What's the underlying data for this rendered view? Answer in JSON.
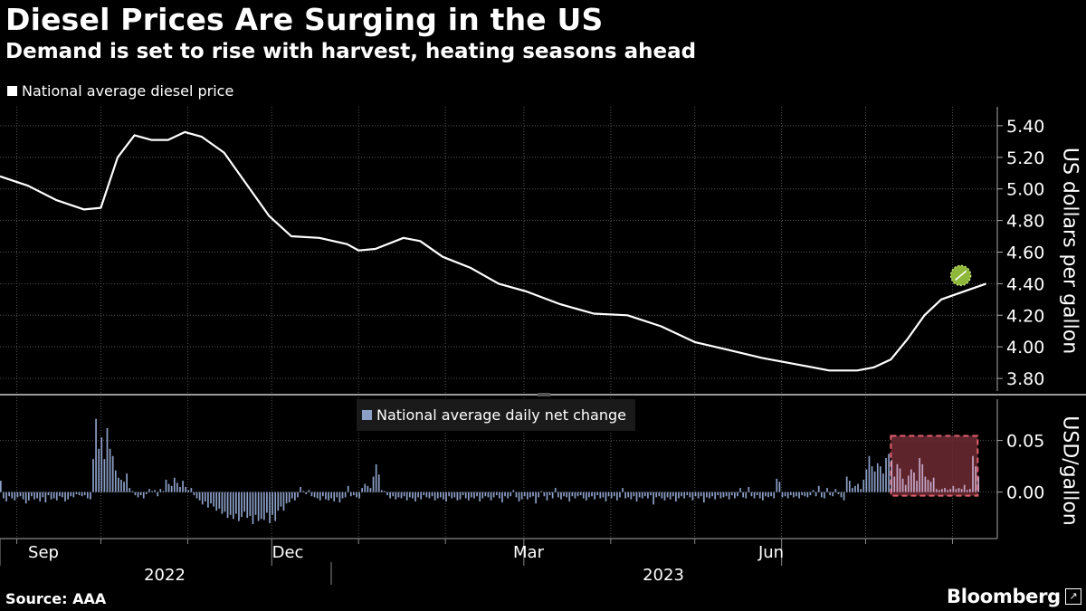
{
  "header": {
    "title": "Diesel Prices Are Surging in the US",
    "subtitle": "Demand is set to rise with harvest, heating seasons ahead"
  },
  "footer": {
    "source": "Source: AAA",
    "brand": "Bloomberg"
  },
  "colors": {
    "background": "#000000",
    "price_line": "#ffffff",
    "bar_fill": "#8c9fc6",
    "marker_fill": "#8fb83a",
    "highlight_fill": "#6e2a33",
    "highlight_border": "#e0606e",
    "grid": "#555555"
  },
  "chart_data": [
    {
      "type": "line",
      "title": "Diesel Prices Are Surging in the US",
      "legend": "National average diesel price",
      "ylabel": "US dollars per gallon",
      "ylim": [
        3.72,
        5.52
      ],
      "yticks": [
        3.8,
        4.0,
        4.2,
        4.4,
        4.6,
        4.8,
        5.0,
        5.2,
        5.4
      ],
      "ytick_labels": [
        "3.80",
        "4.00",
        "4.20",
        "4.40",
        "4.60",
        "4.80",
        "5.00",
        "5.20",
        "5.40"
      ],
      "grid": true,
      "x_label_note": "days since 2022-08-25",
      "x": [
        0,
        10,
        20,
        30,
        36,
        42,
        48,
        54,
        60,
        66,
        72,
        80,
        88,
        96,
        104,
        114,
        124,
        128,
        134,
        144,
        150,
        158,
        168,
        178,
        188,
        200,
        212,
        224,
        236,
        248,
        260,
        272,
        284,
        296,
        306,
        312,
        318,
        324,
        330,
        336,
        344,
        352
      ],
      "values": [
        5.08,
        5.02,
        4.93,
        4.87,
        4.88,
        5.2,
        5.34,
        5.31,
        5.31,
        5.36,
        5.33,
        5.23,
        5.03,
        4.83,
        4.7,
        4.69,
        4.65,
        4.61,
        4.62,
        4.69,
        4.67,
        4.57,
        4.5,
        4.4,
        4.35,
        4.27,
        4.21,
        4.2,
        4.13,
        4.03,
        3.98,
        3.93,
        3.89,
        3.85,
        3.85,
        3.87,
        3.92,
        4.05,
        4.2,
        4.3,
        4.35,
        4.4
      ],
      "latest_marker": {
        "x": 352,
        "value": 4.4
      }
    },
    {
      "type": "bar",
      "legend": "National average daily net change",
      "ylabel": "USD/gallon",
      "ylim": [
        -0.045,
        0.09
      ],
      "yticks": [
        0.0,
        0.05
      ],
      "ytick_labels": [
        "0.00",
        "0.05"
      ],
      "x_start_day": 0,
      "values": [
        0.011,
        -0.006,
        -0.009,
        -0.004,
        -0.006,
        -0.008,
        -0.005,
        -0.004,
        -0.007,
        -0.011,
        -0.008,
        -0.004,
        -0.007,
        -0.006,
        -0.009,
        -0.005,
        -0.01,
        -0.003,
        -0.007,
        -0.006,
        -0.008,
        -0.004,
        -0.005,
        -0.009,
        -0.007,
        -0.004,
        -0.005,
        -0.002,
        -0.003,
        -0.004,
        -0.003,
        -0.006,
        -0.007,
        0.032,
        0.071,
        0.042,
        0.053,
        0.032,
        0.062,
        0.042,
        0.035,
        0.021,
        0.014,
        0.012,
        0.01,
        0.018,
        0.004,
        0.001,
        -0.003,
        -0.005,
        -0.003,
        -0.006,
        -0.002,
        0.003,
        0.001,
        0.002,
        -0.004,
        0.003,
        0.001,
        0.012,
        0.008,
        0.006,
        0.014,
        0.009,
        0.005,
        0.011,
        0.005,
        0.002,
        0.004,
        -0.003,
        -0.006,
        -0.008,
        -0.012,
        -0.009,
        -0.015,
        -0.011,
        -0.014,
        -0.018,
        -0.016,
        -0.021,
        -0.019,
        -0.025,
        -0.022,
        -0.026,
        -0.021,
        -0.028,
        -0.024,
        -0.019,
        -0.025,
        -0.023,
        -0.031,
        -0.022,
        -0.028,
        -0.026,
        -0.027,
        -0.02,
        -0.03,
        -0.022,
        -0.028,
        -0.018,
        -0.014,
        -0.018,
        -0.011,
        -0.01,
        -0.006,
        -0.008,
        -0.005,
        0.005,
        0.001,
        -0.002,
        0.002,
        -0.004,
        -0.005,
        -0.006,
        -0.008,
        -0.004,
        -0.007,
        -0.008,
        -0.006,
        -0.009,
        -0.005,
        -0.01,
        -0.006,
        -0.005,
        0.006,
        -0.004,
        -0.003,
        -0.005,
        -0.006,
        0.004,
        0.008,
        0.006,
        0.004,
        0.015,
        0.027,
        0.017,
        0.002,
        0.001,
        -0.003,
        -0.006,
        -0.004,
        -0.007,
        -0.005,
        -0.006,
        -0.004,
        -0.008,
        -0.005,
        -0.006,
        -0.009,
        -0.005,
        -0.007,
        -0.003,
        -0.005,
        -0.006,
        -0.004,
        -0.008,
        -0.006,
        -0.005,
        -0.007,
        -0.009,
        -0.004,
        -0.006,
        -0.005,
        -0.008,
        -0.007,
        -0.003,
        -0.006,
        -0.008,
        -0.005,
        -0.006,
        -0.004,
        -0.009,
        -0.006,
        -0.004,
        -0.005,
        -0.008,
        -0.005,
        -0.003,
        -0.006,
        -0.01,
        -0.004,
        -0.006,
        -0.004,
        0.002,
        -0.005,
        -0.009,
        -0.007,
        -0.004,
        -0.007,
        -0.005,
        -0.004,
        -0.011,
        -0.005,
        0.001,
        -0.004,
        -0.008,
        -0.003,
        -0.006,
        0.004,
        -0.005,
        -0.007,
        -0.004,
        -0.005,
        -0.009,
        -0.004,
        -0.006,
        -0.004,
        -0.003,
        -0.006,
        -0.008,
        -0.005,
        -0.004,
        -0.007,
        -0.003,
        -0.006,
        -0.005,
        -0.009,
        -0.004,
        -0.006,
        -0.004,
        -0.008,
        -0.005,
        0.004,
        -0.006,
        -0.005,
        -0.007,
        -0.004,
        -0.009,
        -0.005,
        -0.006,
        -0.004,
        -0.006,
        -0.003,
        -0.012,
        -0.005,
        -0.004,
        -0.006,
        -0.008,
        -0.005,
        -0.007,
        -0.004,
        -0.009,
        -0.006,
        -0.004,
        -0.006,
        -0.003,
        -0.005,
        -0.008,
        -0.004,
        -0.006,
        -0.004,
        -0.01,
        -0.005,
        -0.006,
        -0.004,
        -0.007,
        -0.003,
        -0.006,
        -0.005,
        -0.004,
        -0.007,
        -0.003,
        -0.006,
        -0.004,
        0.004,
        -0.005,
        -0.006,
        0.005,
        -0.004,
        -0.006,
        -0.003,
        -0.006,
        -0.008,
        -0.004,
        -0.005,
        -0.004,
        -0.006,
        0.013,
        0.01,
        -0.005,
        -0.004,
        -0.006,
        -0.003,
        -0.005,
        -0.004,
        -0.006,
        -0.003,
        -0.004,
        -0.005,
        -0.003,
        0.002,
        -0.004,
        0.006,
        -0.005,
        -0.006,
        0.004,
        -0.003,
        -0.004,
        0.003,
        -0.002,
        -0.005,
        -0.008,
        0.015,
        0.011,
        0.004,
        0.006,
        0.008,
        0.003,
        0.012,
        0.022,
        0.035,
        0.025,
        0.02,
        0.028,
        0.025,
        0.018,
        0.033,
        0.037,
        0.031,
        0.015,
        0.027,
        0.023,
        0.013,
        0.007,
        0.016,
        0.022,
        0.019,
        0.011,
        0.033,
        0.027,
        0.015,
        0.012,
        0.01,
        0.014,
        0.003,
        0.002,
        0.003,
        0.004,
        0.002,
        0.003,
        0.006,
        0.003,
        0.004,
        0.003,
        0.007,
        0.002,
        0.003,
        0.035,
        0.025,
        0.015
      ],
      "highlight_start_day": 318,
      "highlight_end_day": 349
    }
  ],
  "x_axis": {
    "month_labels": [
      "Sep",
      "Dec",
      "Mar",
      "Jun"
    ],
    "year_labels": [
      "2022",
      "2023"
    ],
    "total_days": 356
  }
}
